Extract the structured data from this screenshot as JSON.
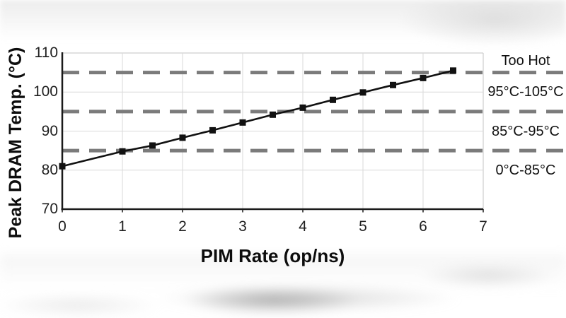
{
  "chart_data": {
    "type": "line",
    "title": "",
    "xlabel": "PIM Rate (op/ns)",
    "ylabel": "Peak DRAM Temp. (°C)",
    "xlim": [
      0,
      7
    ],
    "ylim": [
      70,
      110
    ],
    "x_ticks": [
      0,
      1,
      2,
      3,
      4,
      5,
      6,
      7
    ],
    "y_ticks": [
      70,
      80,
      90,
      100,
      110
    ],
    "grid": true,
    "legend": "none",
    "series": [
      {
        "name": "Peak DRAM Temp.",
        "marker": "square",
        "x": [
          0,
          1,
          1.5,
          2,
          2.5,
          3,
          3.5,
          4,
          4.5,
          5,
          5.5,
          6,
          6.5
        ],
        "y": [
          81,
          84.8,
          86.3,
          88.3,
          90.2,
          92.2,
          94.2,
          96.0,
          98.0,
          99.9,
          101.8,
          103.6,
          105.5
        ]
      }
    ],
    "threshold_lines": {
      "style": "dashed",
      "values": [
        105,
        95,
        85
      ]
    },
    "zone_labels": [
      {
        "label": "Too Hot",
        "at_value": 108
      },
      {
        "label": "95°C-105°C",
        "at_value": 100
      },
      {
        "label": "85°C-95°C",
        "at_value": 90
      },
      {
        "label": "0°C-85°C",
        "at_value": 80
      }
    ]
  },
  "colors": {
    "series": "#111111",
    "marker": "#111111",
    "dashed": "#7b7b7b",
    "grid": "#d9d9d9",
    "plot_border": "#c3c3c3",
    "axis": "#1a1a1a",
    "text": "#1f1f1f"
  }
}
